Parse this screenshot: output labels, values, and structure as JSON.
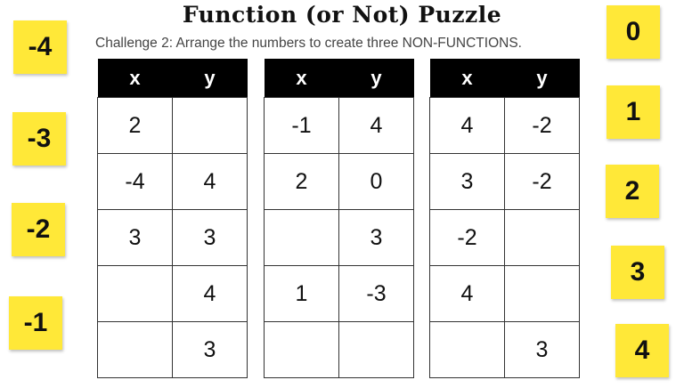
{
  "title": "Function (or Not) Puzzle",
  "subtitle": "Challenge 2: Arrange the numbers to create three NON-FUNCTIONS.",
  "sticky_color": "#ffe838",
  "tables": [
    {
      "headers": [
        "x",
        "y"
      ],
      "rows": [
        [
          "2",
          ""
        ],
        [
          "-4",
          "4"
        ],
        [
          "3",
          "3"
        ],
        [
          "",
          "4"
        ],
        [
          "",
          "3"
        ]
      ]
    },
    {
      "headers": [
        "x",
        "y"
      ],
      "rows": [
        [
          "-1",
          "4"
        ],
        [
          "2",
          "0"
        ],
        [
          "",
          "3"
        ],
        [
          "1",
          "-3"
        ],
        [
          "",
          ""
        ]
      ]
    },
    {
      "headers": [
        "x",
        "y"
      ],
      "rows": [
        [
          "4",
          "-2"
        ],
        [
          "3",
          "-2"
        ],
        [
          "-2",
          ""
        ],
        [
          "4",
          ""
        ],
        [
          "",
          "3"
        ]
      ]
    }
  ],
  "left_stickies": [
    "-4",
    "-3",
    "-2",
    "-1"
  ],
  "right_stickies": [
    "0",
    "1",
    "2",
    "3",
    "4"
  ]
}
